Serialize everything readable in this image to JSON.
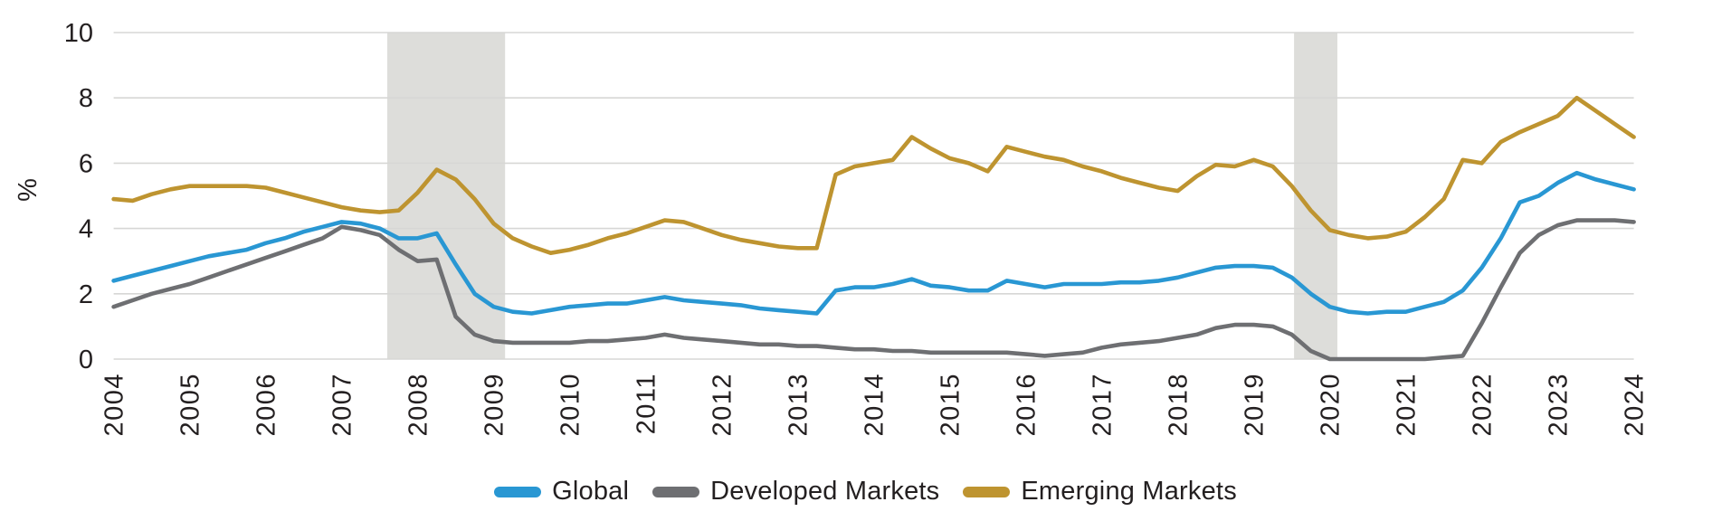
{
  "chart_data": {
    "type": "line",
    "title": "",
    "xlabel": "",
    "ylabel": "%",
    "ylim": [
      0,
      10
    ],
    "yticks": [
      0,
      2,
      4,
      6,
      8,
      10
    ],
    "grid": "horizontal-only",
    "legend_position": "bottom-center",
    "x_start_year": 2004,
    "x_step_years": 0.25,
    "x_tick_years": [
      2004,
      2005,
      2006,
      2007,
      2008,
      2009,
      2010,
      2011,
      2012,
      2013,
      2014,
      2015,
      2016,
      2017,
      2018,
      2019,
      2020,
      2021,
      2022,
      2023,
      2024
    ],
    "x_tick_rotation_deg": -90,
    "shaded_bands": [
      {
        "name": "recession-band-2008",
        "from_year": 2007.6,
        "to_year": 2009.15
      },
      {
        "name": "recession-band-2020",
        "from_year": 2019.53,
        "to_year": 2020.1
      }
    ],
    "colors": {
      "grid": "#D7D7D5",
      "band": "#DDDDDA",
      "text": "#231F20",
      "background": "#FFFFFF"
    },
    "series": [
      {
        "name": "Global",
        "color": "#2997D3",
        "values": [
          2.4,
          2.55,
          2.7,
          2.85,
          3.0,
          3.15,
          3.25,
          3.35,
          3.55,
          3.7,
          3.9,
          4.05,
          4.2,
          4.15,
          4.0,
          3.7,
          3.7,
          3.85,
          2.9,
          2.0,
          1.6,
          1.45,
          1.4,
          1.5,
          1.6,
          1.65,
          1.7,
          1.7,
          1.8,
          1.9,
          1.8,
          1.75,
          1.7,
          1.65,
          1.55,
          1.5,
          1.45,
          1.4,
          2.1,
          2.2,
          2.2,
          2.3,
          2.45,
          2.25,
          2.2,
          2.1,
          2.1,
          2.4,
          2.3,
          2.2,
          2.3,
          2.3,
          2.3,
          2.35,
          2.35,
          2.4,
          2.5,
          2.65,
          2.8,
          2.85,
          2.85,
          2.8,
          2.5,
          2.0,
          1.6,
          1.45,
          1.4,
          1.45,
          1.45,
          1.6,
          1.75,
          2.1,
          2.8,
          3.7,
          4.8,
          5.0,
          5.4,
          5.7,
          5.5,
          5.35,
          5.2
        ]
      },
      {
        "name": "Developed Markets",
        "color": "#6E6F72",
        "values": [
          1.6,
          1.8,
          2.0,
          2.15,
          2.3,
          2.5,
          2.7,
          2.9,
          3.1,
          3.3,
          3.5,
          3.7,
          4.05,
          3.95,
          3.8,
          3.35,
          3.0,
          3.05,
          1.3,
          0.75,
          0.55,
          0.5,
          0.5,
          0.5,
          0.5,
          0.55,
          0.55,
          0.6,
          0.65,
          0.75,
          0.65,
          0.6,
          0.55,
          0.5,
          0.45,
          0.45,
          0.4,
          0.4,
          0.35,
          0.3,
          0.3,
          0.25,
          0.25,
          0.2,
          0.2,
          0.2,
          0.2,
          0.2,
          0.15,
          0.1,
          0.15,
          0.2,
          0.35,
          0.45,
          0.5,
          0.55,
          0.65,
          0.75,
          0.95,
          1.05,
          1.05,
          1.0,
          0.75,
          0.25,
          0.0,
          0.0,
          0.0,
          0.0,
          0.0,
          0.0,
          0.05,
          0.1,
          1.1,
          2.2,
          3.25,
          3.8,
          4.1,
          4.25,
          4.25,
          4.25,
          4.2
        ]
      },
      {
        "name": "Emerging Markets",
        "color": "#BE9430",
        "values": [
          4.9,
          4.85,
          5.05,
          5.2,
          5.3,
          5.3,
          5.3,
          5.3,
          5.25,
          5.1,
          4.95,
          4.8,
          4.65,
          4.55,
          4.5,
          4.55,
          5.1,
          5.8,
          5.5,
          4.9,
          4.15,
          3.7,
          3.45,
          3.25,
          3.35,
          3.5,
          3.7,
          3.85,
          4.05,
          4.25,
          4.2,
          4.0,
          3.8,
          3.65,
          3.55,
          3.45,
          3.4,
          3.4,
          5.65,
          5.9,
          6.0,
          6.1,
          6.8,
          6.45,
          6.15,
          6.0,
          5.75,
          6.5,
          6.35,
          6.2,
          6.1,
          5.9,
          5.75,
          5.55,
          5.4,
          5.25,
          5.15,
          5.6,
          5.95,
          5.9,
          6.1,
          5.9,
          5.3,
          4.55,
          3.95,
          3.8,
          3.7,
          3.75,
          3.9,
          4.35,
          4.9,
          6.1,
          6.0,
          6.65,
          6.95,
          7.2,
          7.45,
          8.0,
          7.6,
          7.2,
          6.8
        ]
      }
    ]
  }
}
